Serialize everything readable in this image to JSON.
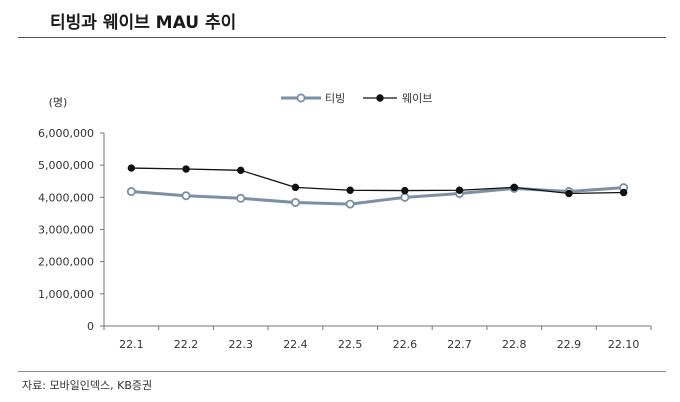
{
  "header": {
    "title": "티빙과 웨이브 MAU 추이"
  },
  "footer": {
    "source": "자료: 모바일인덱스, KB증권"
  },
  "chart_data": {
    "type": "line",
    "title": "티빙과 웨이브 MAU 추이",
    "ylabel": "(명)",
    "xlabel": "",
    "categories": [
      "22.1",
      "22.2",
      "22.3",
      "22.4",
      "22.5",
      "22.6",
      "22.7",
      "22.8",
      "22.9",
      "22.10"
    ],
    "ylim": [
      0,
      6000000
    ],
    "yticks": [
      0,
      1000000,
      2000000,
      3000000,
      4000000,
      5000000,
      6000000
    ],
    "ytick_labels": [
      "0",
      "1,000,000",
      "2,000,000",
      "3,000,000",
      "4,000,000",
      "5,000,000",
      "6,000,000"
    ],
    "grid": false,
    "legend_position": "top-center",
    "series": [
      {
        "name": "티빙",
        "color": "#7d8fa3",
        "marker": "open-circle",
        "values": [
          4180000,
          4050000,
          3970000,
          3840000,
          3790000,
          4000000,
          4120000,
          4280000,
          4180000,
          4300000
        ]
      },
      {
        "name": "웨이브",
        "color": "#111111",
        "marker": "filled-circle",
        "values": [
          4910000,
          4880000,
          4840000,
          4310000,
          4220000,
          4210000,
          4220000,
          4310000,
          4120000,
          4150000
        ]
      }
    ]
  }
}
